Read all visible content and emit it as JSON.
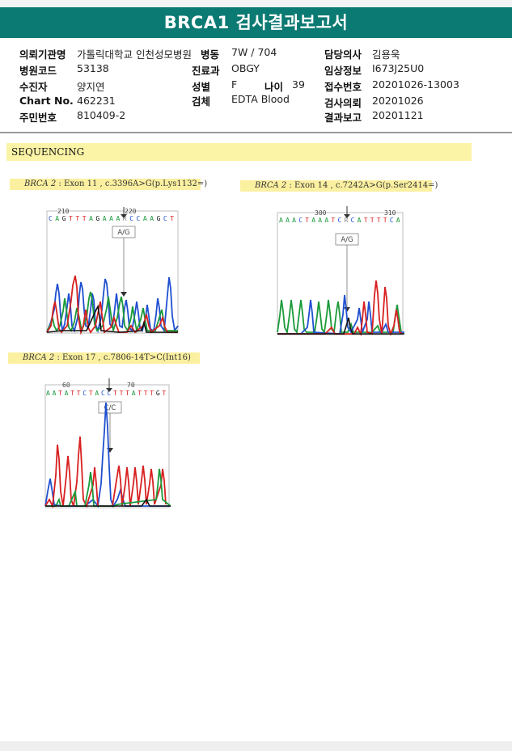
{
  "report": {
    "title": "BRCA1 검사결과보고서",
    "fields": {
      "institution_label": "의뢰기관명",
      "institution": "가톨릭대학교 인천성모병원",
      "ward_label": "병동",
      "ward": "7W / 704",
      "doctor_label": "담당의사",
      "doctor": "김용욱",
      "hospital_code_label": "병원코드",
      "hospital_code": "53138",
      "dept_label": "진료과",
      "dept": "OBGY",
      "clinical_info_label": "임상정보",
      "clinical_info": "I673J25U0",
      "patient_label": "수진자",
      "patient": "양지연",
      "sex_label": "성별",
      "sex": "F",
      "age_label": "나이",
      "age": "39",
      "receipt_no_label": "접수번호",
      "receipt_no": "20201026-13003",
      "chart_no_label": "Chart No.",
      "chart_no": "462231",
      "specimen_label": "검체",
      "specimen": "EDTA Blood",
      "request_date_label": "검사의뢰",
      "request_date": "20201026",
      "id_no_label": "주민번호",
      "id_no": "810409-2",
      "report_date_label": "결과보고",
      "report_date": "20201121"
    }
  },
  "sequencing": {
    "heading": "SEQUENCING",
    "variants": [
      {
        "gene": "BRCA 2",
        "desc": ": Exon 11 , c.3396A>G(p.Lys1132=)",
        "pos_start": "210",
        "pos_end": "220",
        "bases": "CAGTTTAGAAARCCAAGCT",
        "call": "A/G"
      },
      {
        "gene": "BRCA 2",
        "desc": ": Exon 14 , c.7242A>G(p.Ser2414=)",
        "pos_start": "300",
        "pos_end": "310",
        "bases": "AAACTAAATCRCATTTTCA",
        "call": "A/G"
      },
      {
        "gene": "BRCA 2",
        "desc": ": Exon 17 , c.7806-14T>C(Int16)",
        "pos_start": "60",
        "pos_end": "70",
        "bases": "AATATTCTACCTTTATTTGT",
        "call": "C/C"
      }
    ]
  },
  "colors": {
    "header_teal": "#0b7a72",
    "base_A": "#1a9a3a",
    "base_C": "#1f4fd0",
    "base_G": "#111111",
    "base_T": "#d82020",
    "base_R": "#8a8a8a"
  }
}
